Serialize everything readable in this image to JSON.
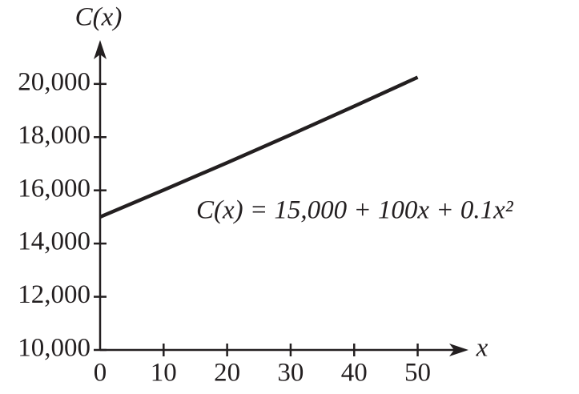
{
  "chart_data": {
    "type": "line",
    "x": [
      0,
      10,
      20,
      30,
      40,
      50
    ],
    "values": [
      15000,
      16010,
      17040,
      18090,
      19160,
      20250
    ],
    "color": "#231f20",
    "xlabel": "x",
    "ylabel": "C(x)",
    "annotation": "C(x) = 15,000 + 100x + 0.1x²",
    "xlim": [
      0,
      58
    ],
    "ylim": [
      10000,
      21650
    ],
    "xticks": [
      0,
      10,
      20,
      30,
      40,
      50
    ],
    "yticks": [
      {
        "value": 10000,
        "label": "10,000"
      },
      {
        "value": 12000,
        "label": "12,000"
      },
      {
        "value": 14000,
        "label": "14,000"
      },
      {
        "value": 16000,
        "label": "16,000"
      },
      {
        "value": 18000,
        "label": "18,000"
      },
      {
        "value": 20000,
        "label": "20,000"
      }
    ]
  }
}
